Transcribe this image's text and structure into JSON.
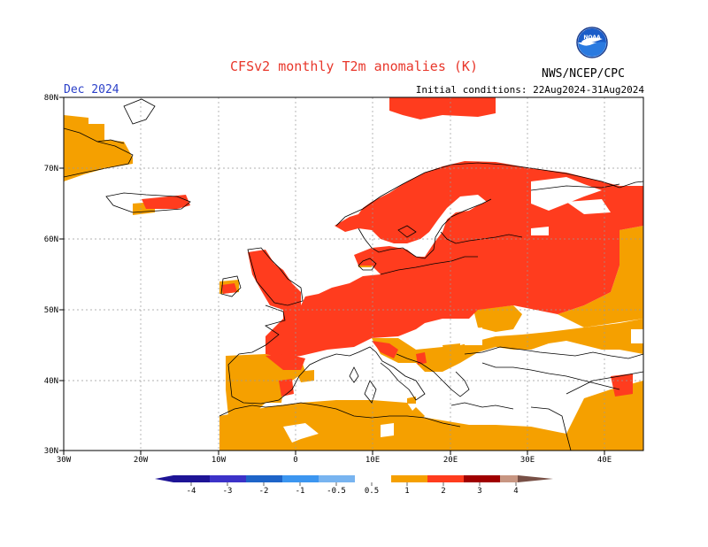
{
  "header": {
    "title": "CFSv2 monthly T2m anomalies (K)",
    "month": "Dec 2024",
    "initial_conditions": "Initial conditions: 22Aug2024-31Aug2024",
    "agency": "NWS/NCEP/CPC",
    "logo_text": "NOAA"
  },
  "axes": {
    "lon_labels": [
      "30W",
      "20W",
      "10W",
      "0",
      "10E",
      "20E",
      "30E",
      "40E"
    ],
    "lat_labels": [
      "80N",
      "70N",
      "60N",
      "50N",
      "40N",
      "30N"
    ],
    "lon_range": [
      -30,
      45
    ],
    "lat_range": [
      30,
      80
    ]
  },
  "colorbar": {
    "labels": [
      "-4",
      "-3",
      "-2",
      "-1",
      "-0.5",
      "0.5",
      "1",
      "2",
      "3",
      "4"
    ],
    "colors": [
      "#1e1496",
      "#3c32c8",
      "#1e64c8",
      "#3c96f0",
      "#78b4f0",
      "#ffffff",
      "#f5a000",
      "#ff3c1e",
      "#a00000",
      "#c89682",
      "#785046"
    ]
  },
  "colors": {
    "anomaly_0_5_to_1": "#f5a000",
    "anomaly_1_to_2": "#ff3c1e",
    "coastline": "#000000",
    "grid": "#999999"
  }
}
